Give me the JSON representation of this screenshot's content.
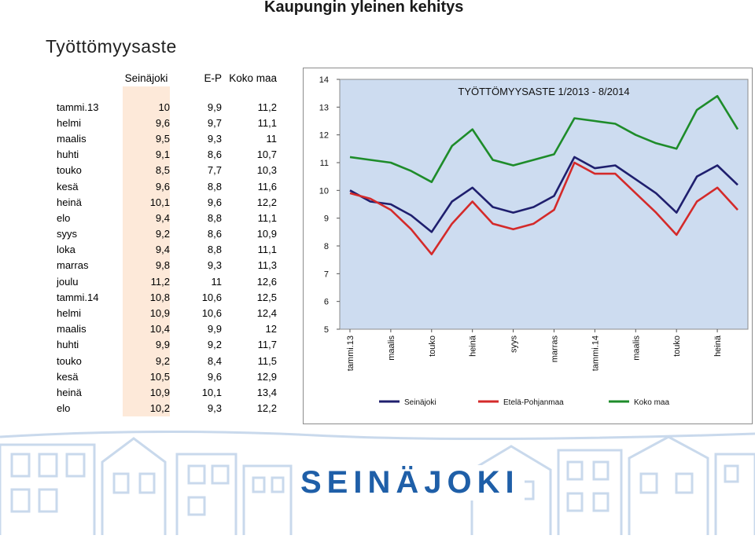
{
  "header": {
    "main_title": "Kaupungin yleinen kehitys",
    "section_title": "Työttömyysaste"
  },
  "table": {
    "headers": [
      "Seinäjoki",
      "E-P",
      "Koko maa"
    ],
    "rows": [
      {
        "month": "tammi.13",
        "seinajoki": "10",
        "ep": "9,9",
        "koko_maa": "11,2"
      },
      {
        "month": "helmi",
        "seinajoki": "9,6",
        "ep": "9,7",
        "koko_maa": "11,1"
      },
      {
        "month": "maalis",
        "seinajoki": "9,5",
        "ep": "9,3",
        "koko_maa": "11"
      },
      {
        "month": "huhti",
        "seinajoki": "9,1",
        "ep": "8,6",
        "koko_maa": "10,7"
      },
      {
        "month": "touko",
        "seinajoki": "8,5",
        "ep": "7,7",
        "koko_maa": "10,3"
      },
      {
        "month": "kesä",
        "seinajoki": "9,6",
        "ep": "8,8",
        "koko_maa": "11,6"
      },
      {
        "month": "heinä",
        "seinajoki": "10,1",
        "ep": "9,6",
        "koko_maa": "12,2"
      },
      {
        "month": "elo",
        "seinajoki": "9,4",
        "ep": "8,8",
        "koko_maa": "11,1"
      },
      {
        "month": "syys",
        "seinajoki": "9,2",
        "ep": "8,6",
        "koko_maa": "10,9"
      },
      {
        "month": "loka",
        "seinajoki": "9,4",
        "ep": "8,8",
        "koko_maa": "11,1"
      },
      {
        "month": "marras",
        "seinajoki": "9,8",
        "ep": "9,3",
        "koko_maa": "11,3"
      },
      {
        "month": "joulu",
        "seinajoki": "11,2",
        "ep": "11",
        "koko_maa": "12,6"
      },
      {
        "month": "tammi.14",
        "seinajoki": "10,8",
        "ep": "10,6",
        "koko_maa": "12,5"
      },
      {
        "month": "helmi",
        "seinajoki": "10,9",
        "ep": "10,6",
        "koko_maa": "12,4"
      },
      {
        "month": "maalis",
        "seinajoki": "10,4",
        "ep": "9,9",
        "koko_maa": "12"
      },
      {
        "month": "huhti",
        "seinajoki": "9,9",
        "ep": "9,2",
        "koko_maa": "11,7"
      },
      {
        "month": "touko",
        "seinajoki": "9,2",
        "ep": "8,4",
        "koko_maa": "11,5"
      },
      {
        "month": "kesä",
        "seinajoki": "10,5",
        "ep": "9,6",
        "koko_maa": "12,9"
      },
      {
        "month": "heinä",
        "seinajoki": "10,9",
        "ep": "10,1",
        "koko_maa": "13,4"
      },
      {
        "month": "elo",
        "seinajoki": "10,2",
        "ep": "9,3",
        "koko_maa": "12,2"
      }
    ]
  },
  "chart_data": {
    "type": "line",
    "title": "TYÖTTÖMYYSASTE 1/2013 - 8/2014",
    "x": [
      "tammi.13",
      "helmi",
      "maalis",
      "huhti",
      "touko",
      "kesä",
      "heinä",
      "elo",
      "syys",
      "loka",
      "marras",
      "joulu",
      "tammi.14",
      "helmi",
      "maalis",
      "huhti",
      "touko",
      "kesä",
      "heinä",
      "elo"
    ],
    "x_tick_labels": [
      "tammi.13",
      "maalis",
      "touko",
      "heinä",
      "syys",
      "marras",
      "tammi.14",
      "maalis",
      "touko",
      "heinä"
    ],
    "ylim": [
      5,
      14
    ],
    "y_ticks": [
      5,
      6,
      7,
      8,
      9,
      10,
      11,
      12,
      13,
      14
    ],
    "grid": false,
    "legend_position": "bottom",
    "series": [
      {
        "name": "Seinäjoki",
        "color": "#1f1f6e",
        "values": [
          10,
          9.6,
          9.5,
          9.1,
          8.5,
          9.6,
          10.1,
          9.4,
          9.2,
          9.4,
          9.8,
          11.2,
          10.8,
          10.9,
          10.4,
          9.9,
          9.2,
          10.5,
          10.9,
          10.2
        ]
      },
      {
        "name": "Etelä-Pohjanmaa",
        "color": "#d42a2a",
        "values": [
          9.9,
          9.7,
          9.3,
          8.6,
          7.7,
          8.8,
          9.6,
          8.8,
          8.6,
          8.8,
          9.3,
          11,
          10.6,
          10.6,
          9.9,
          9.2,
          8.4,
          9.6,
          10.1,
          9.3
        ]
      },
      {
        "name": "Koko maa",
        "color": "#1e8c2a",
        "values": [
          11.2,
          11.1,
          11,
          10.7,
          10.3,
          11.6,
          12.2,
          11.1,
          10.9,
          11.1,
          11.3,
          12.6,
          12.5,
          12.4,
          12,
          11.7,
          11.5,
          12.9,
          13.4,
          12.2
        ]
      }
    ]
  },
  "logo": {
    "text": "SEINÄJOKI",
    "color": "#1f5fa8",
    "sketch_color": "#c9d9ec"
  }
}
